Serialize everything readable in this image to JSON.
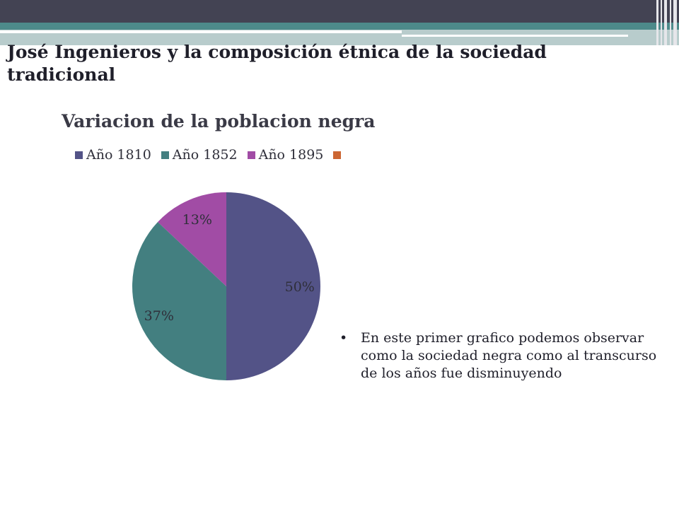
{
  "slide": {
    "title": "José Ingenieros y la composición étnica de la sociedad tradicional",
    "bullet_symbol": "•",
    "bullet_text": "En este primer grafico podemos observar como la sociedad negra como  al transcurso de los años fue disminuyendo"
  },
  "colors": {
    "top_band": "#434353",
    "teal_band": "#4d8a8a",
    "light_band": "#b8cccc"
  },
  "chart_data": {
    "type": "pie",
    "title": "Variacion de la poblacion negra",
    "legend_position": "top",
    "legend": [
      {
        "label": "Año 1810",
        "color": "#535387"
      },
      {
        "label": "Año 1852",
        "color": "#437f80"
      },
      {
        "label": "Año 1895",
        "color": "#a14ca5"
      },
      {
        "label": "",
        "color": "#cc6633"
      }
    ],
    "slices": [
      {
        "name": "Año 1810",
        "value": 50,
        "label": "50%",
        "color": "#535387"
      },
      {
        "name": "Año 1852",
        "value": 37,
        "label": "37%",
        "color": "#437f80"
      },
      {
        "name": "Año 1895",
        "value": 13,
        "label": "13%",
        "color": "#a14ca5"
      }
    ]
  }
}
